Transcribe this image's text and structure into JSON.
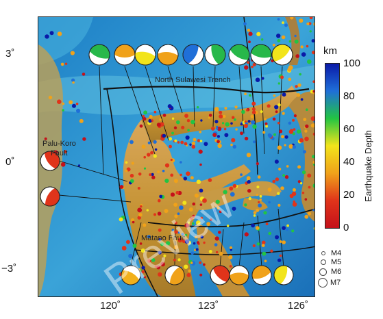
{
  "map": {
    "labels": {
      "north_trench": "North Sulawesi Trench",
      "palu_fault_line1": "Palu-Koro",
      "palu_fault_line2": "Fault",
      "south_fault": "Matano Fault"
    },
    "watermark": "Preview"
  },
  "axes": {
    "lat_labels": [
      "3˚",
      "0˚",
      "−3˚"
    ],
    "lon_labels": [
      "120˚",
      "123˚",
      "126˚"
    ]
  },
  "colorbar": {
    "unit": "km",
    "title": "Earthquake Depth",
    "ticks": [
      "100",
      "80",
      "60",
      "40",
      "20",
      "0"
    ],
    "colors": [
      "#0a1aa8",
      "#1f6fd8",
      "#22c443",
      "#f2e41b",
      "#f0a21a",
      "#e0341a",
      "#c4111a"
    ]
  },
  "magnitude_legend": [
    "M4",
    "M5",
    "M6",
    "M7"
  ],
  "focal_mechanisms": {
    "top_colors": [
      "#27b84a",
      "#f0a21a",
      "#f2e41b",
      "#f0a21a",
      "#1f6fd8",
      "#27b84a",
      "#27b84a",
      "#27b84a",
      "#f2e41b"
    ],
    "left_colors": [
      "#e0341a",
      "#e0341a"
    ],
    "bottom_colors": [
      "#f2b01a",
      "#f0a21a",
      "#e0341a",
      "#f0a21a",
      "#f0a21a",
      "#f2e41b"
    ]
  }
}
